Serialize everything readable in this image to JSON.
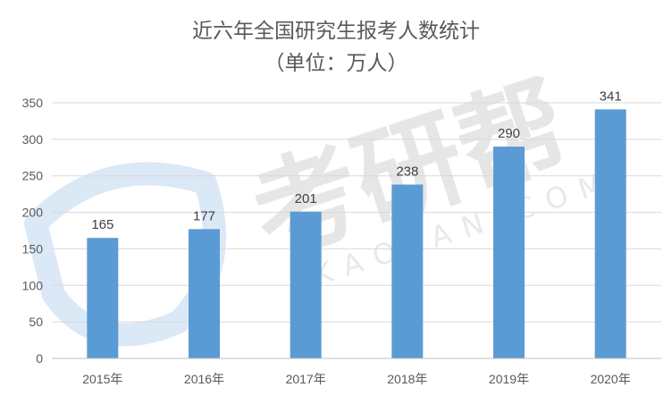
{
  "watermark": {
    "brand": "考研帮",
    "domain": "KAOYAN.COM"
  },
  "chart_data": {
    "type": "bar",
    "title": "近六年全国研究生报考人数统计",
    "subtitle": "（单位：万人）",
    "categories": [
      "2015年",
      "2016年",
      "2017年",
      "2018年",
      "2019年",
      "2020年"
    ],
    "values": [
      165,
      177,
      201,
      238,
      290,
      341
    ],
    "data_labels": [
      "165",
      "177",
      "201",
      "238",
      "290",
      "341"
    ],
    "y_ticks": [
      "0",
      "50",
      "100",
      "150",
      "200",
      "250",
      "300",
      "350"
    ],
    "ylim": [
      0,
      350
    ],
    "grid": true,
    "legend": "none",
    "bar_color": "#5b9bd5"
  }
}
